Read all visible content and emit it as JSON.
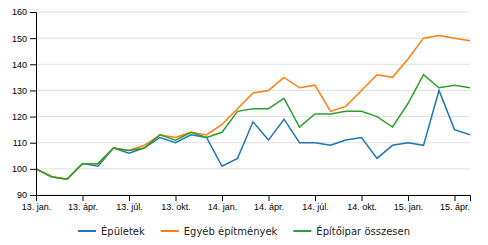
{
  "chart_data": {
    "type": "line",
    "categories": [
      "13. jan.",
      null,
      null,
      "13. ápr.",
      null,
      null,
      "13. júl.",
      null,
      null,
      "13. okt.",
      null,
      null,
      "14. jan.",
      null,
      null,
      "14. ápr.",
      null,
      null,
      "14. júl.",
      null,
      null,
      "14. okt.",
      null,
      null,
      "15. jan.",
      null,
      null,
      "15. ápr.",
      null
    ],
    "series": [
      {
        "name": "Épületek",
        "values": [
          100,
          97,
          96,
          102,
          101,
          108,
          106,
          108,
          112,
          110,
          113,
          112,
          101,
          104,
          118,
          111,
          119,
          110,
          110,
          109,
          111,
          112,
          104,
          109,
          110,
          109,
          130,
          115,
          113
        ]
      },
      {
        "name": "Egyéb építmények",
        "values": [
          100,
          97,
          96,
          102,
          102,
          108,
          107,
          109,
          113,
          112,
          114,
          113,
          117,
          123,
          129,
          130,
          135,
          131,
          132,
          122,
          124,
          130,
          136,
          135,
          142,
          150,
          151,
          150,
          149
        ]
      },
      {
        "name": "Építőipar összesen",
        "values": [
          100,
          97,
          96,
          102,
          102,
          108,
          107,
          108,
          113,
          111,
          114,
          112,
          114,
          122,
          123,
          123,
          127,
          116,
          121,
          121,
          122,
          122,
          120,
          116,
          125,
          136,
          131,
          132,
          131
        ]
      }
    ],
    "ylim": [
      90,
      160
    ],
    "yticks": [
      90,
      100,
      110,
      120,
      130,
      140,
      150,
      160
    ],
    "grid": true,
    "legend": "bottom"
  }
}
